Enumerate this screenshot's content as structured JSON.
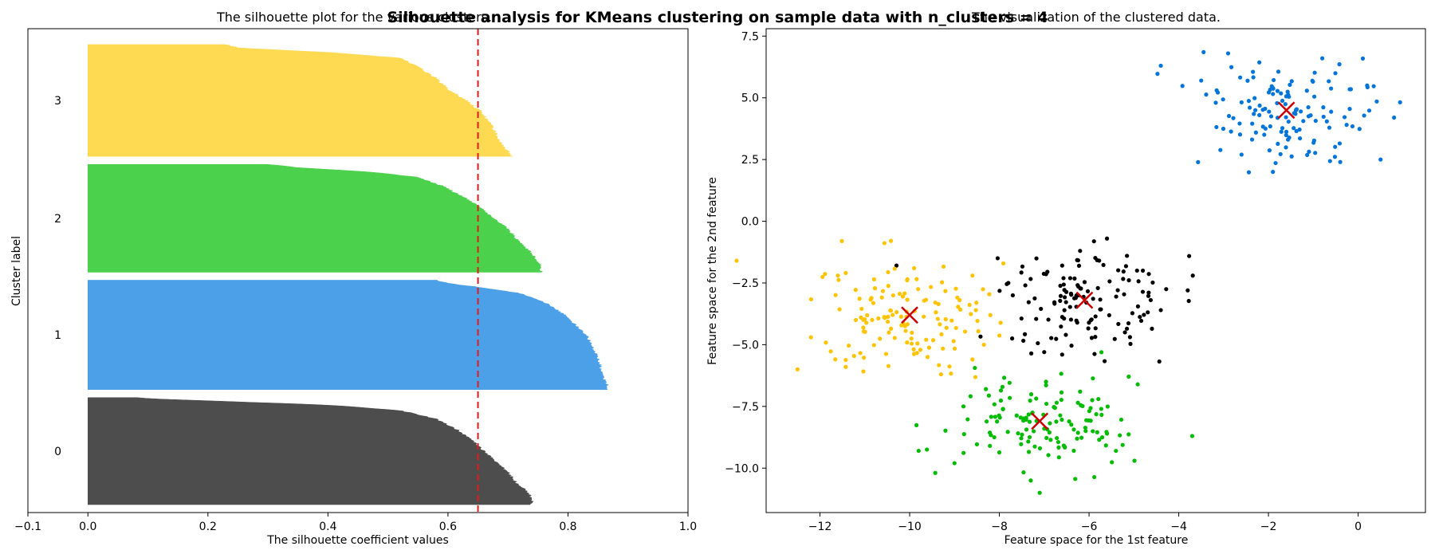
{
  "figure": {
    "suptitle": "Silhouette analysis for KMeans clustering on sample data with n_clusters = 4",
    "background": "#ffffff"
  },
  "chart_data": [
    {
      "type": "area",
      "title": "The silhouette plot for the various clusters.",
      "xlabel": "The silhouette coefficient values",
      "ylabel": "Cluster label",
      "xlim": [
        -0.1,
        1.0
      ],
      "ylim": [
        0,
        610
      ],
      "xticks": [
        "−0.1",
        "0.0",
        "0.2",
        "0.4",
        "0.6",
        "0.8",
        "1.0"
      ],
      "xtick_values": [
        -0.1,
        0.0,
        0.2,
        0.4,
        0.6,
        0.8,
        1.0
      ],
      "average_silhouette_score": 0.65,
      "average_line_color": "#e41a1c",
      "series": [
        {
          "name": "0",
          "color": "#4d4d4d",
          "y_start": 10,
          "size": 135,
          "profile": [
            [
              0.0,
              0.74
            ],
            [
              0.04,
              0.74
            ],
            [
              0.1,
              0.735
            ],
            [
              0.2,
              0.715
            ],
            [
              0.3,
              0.7
            ],
            [
              0.4,
              0.68
            ],
            [
              0.5,
              0.66
            ],
            [
              0.6,
              0.64
            ],
            [
              0.7,
              0.615
            ],
            [
              0.8,
              0.58
            ],
            [
              0.88,
              0.52
            ],
            [
              0.93,
              0.4
            ],
            [
              0.96,
              0.25
            ],
            [
              0.99,
              0.1
            ],
            [
              1.0,
              0.08
            ]
          ]
        },
        {
          "name": "1",
          "color": "#4ca0e8",
          "y_start": 155,
          "size": 138,
          "profile": [
            [
              0.0,
              0.865
            ],
            [
              0.05,
              0.865
            ],
            [
              0.1,
              0.86
            ],
            [
              0.2,
              0.855
            ],
            [
              0.3,
              0.85
            ],
            [
              0.4,
              0.84
            ],
            [
              0.5,
              0.83
            ],
            [
              0.6,
              0.81
            ],
            [
              0.7,
              0.79
            ],
            [
              0.8,
              0.76
            ],
            [
              0.88,
              0.72
            ],
            [
              0.93,
              0.66
            ],
            [
              0.97,
              0.6
            ],
            [
              1.0,
              0.58
            ]
          ]
        },
        {
          "name": "2",
          "color": "#4bd14b",
          "y_start": 303,
          "size": 136,
          "profile": [
            [
              0.0,
              0.755
            ],
            [
              0.05,
              0.755
            ],
            [
              0.1,
              0.75
            ],
            [
              0.2,
              0.735
            ],
            [
              0.3,
              0.715
            ],
            [
              0.4,
              0.7
            ],
            [
              0.5,
              0.675
            ],
            [
              0.6,
              0.655
            ],
            [
              0.7,
              0.625
            ],
            [
              0.8,
              0.59
            ],
            [
              0.88,
              0.55
            ],
            [
              0.93,
              0.47
            ],
            [
              0.97,
              0.35
            ],
            [
              1.0,
              0.3
            ]
          ]
        },
        {
          "name": "3",
          "color": "#fed952",
          "y_start": 449,
          "size": 141,
          "profile": [
            [
              0.0,
              0.705
            ],
            [
              0.05,
              0.7
            ],
            [
              0.1,
              0.69
            ],
            [
              0.2,
              0.68
            ],
            [
              0.3,
              0.67
            ],
            [
              0.4,
              0.655
            ],
            [
              0.5,
              0.63
            ],
            [
              0.6,
              0.6
            ],
            [
              0.7,
              0.58
            ],
            [
              0.8,
              0.55
            ],
            [
              0.88,
              0.52
            ],
            [
              0.93,
              0.4
            ],
            [
              0.97,
              0.25
            ],
            [
              1.0,
              0.23
            ]
          ]
        }
      ]
    },
    {
      "type": "scatter",
      "title": "The visualization of the clustered data.",
      "xlabel": "Feature space for the 1st feature",
      "ylabel": "Feature space for the 2nd feature",
      "xlim": [
        -13.2,
        1.5
      ],
      "ylim": [
        -11.8,
        7.8
      ],
      "xticks": [
        "−12",
        "−10",
        "−8",
        "−6",
        "−4",
        "−2",
        "0"
      ],
      "xtick_values": [
        -12,
        -10,
        -8,
        -6,
        -4,
        -2,
        0
      ],
      "yticks": [
        "−10.0",
        "−7.5",
        "−5.0",
        "−2.5",
        "0.0",
        "2.5",
        "5.0",
        "7.5"
      ],
      "ytick_values": [
        -10.0,
        -7.5,
        -5.0,
        -2.5,
        0.0,
        2.5,
        5.0,
        7.5
      ],
      "centroid_color": "#cc0000",
      "series": [
        {
          "name": "0",
          "color": "#000000",
          "center": [
            -6.1,
            -3.2
          ],
          "count": 135,
          "sample_points": [
            [
              -3.8,
              -2.8
            ],
            [
              -4.4,
              -3.6
            ],
            [
              -5.6,
              -0.7
            ],
            [
              -6.6,
              -5.4
            ],
            [
              -7.0,
              -5.3
            ],
            [
              -7.8,
              -2.5
            ],
            [
              -6.2,
              -1.2
            ],
            [
              -4.8,
              -2.0
            ],
            [
              -7.7,
              -3.0
            ],
            [
              -5.2,
              -4.5
            ]
          ]
        },
        {
          "name": "1",
          "color": "#0074d9",
          "center": [
            -1.6,
            4.5
          ],
          "count": 138,
          "sample_points": [
            [
              -4.4,
              6.3
            ],
            [
              0.8,
              4.2
            ],
            [
              -2.9,
              6.8
            ],
            [
              -1.9,
              2.0
            ],
            [
              -0.4,
              2.4
            ],
            [
              0.5,
              2.5
            ],
            [
              -2.6,
              2.7
            ],
            [
              -0.8,
              6.6
            ],
            [
              -3.5,
              5.7
            ],
            [
              0.2,
              5.5
            ]
          ]
        },
        {
          "name": "2",
          "color": "#00bb00",
          "center": [
            -7.1,
            -8.1
          ],
          "count": 136,
          "sample_points": [
            [
              -3.7,
              -8.7
            ],
            [
              -9.8,
              -9.3
            ],
            [
              -9.0,
              -9.8
            ],
            [
              -7.3,
              -10.5
            ],
            [
              -5.4,
              -9.3
            ],
            [
              -8.3,
              -6.8
            ],
            [
              -6.2,
              -6.9
            ],
            [
              -7.1,
              -11.0
            ],
            [
              -8.8,
              -7.5
            ],
            [
              -5.6,
              -8.6
            ]
          ]
        },
        {
          "name": "3",
          "color": "#ffc300",
          "center": [
            -10.0,
            -3.8
          ],
          "count": 141,
          "sample_points": [
            [
              -12.5,
              -6.0
            ],
            [
              -12.2,
              -4.7
            ],
            [
              -11.6,
              -2.2
            ],
            [
              -9.3,
              -6.2
            ],
            [
              -9.6,
              -5.5
            ],
            [
              -8.6,
              -5.6
            ],
            [
              -9.9,
              -1.9
            ],
            [
              -8.2,
              -3.8
            ],
            [
              -8.6,
              -2.2
            ],
            [
              -11.2,
              -4.0
            ]
          ]
        }
      ]
    }
  ]
}
